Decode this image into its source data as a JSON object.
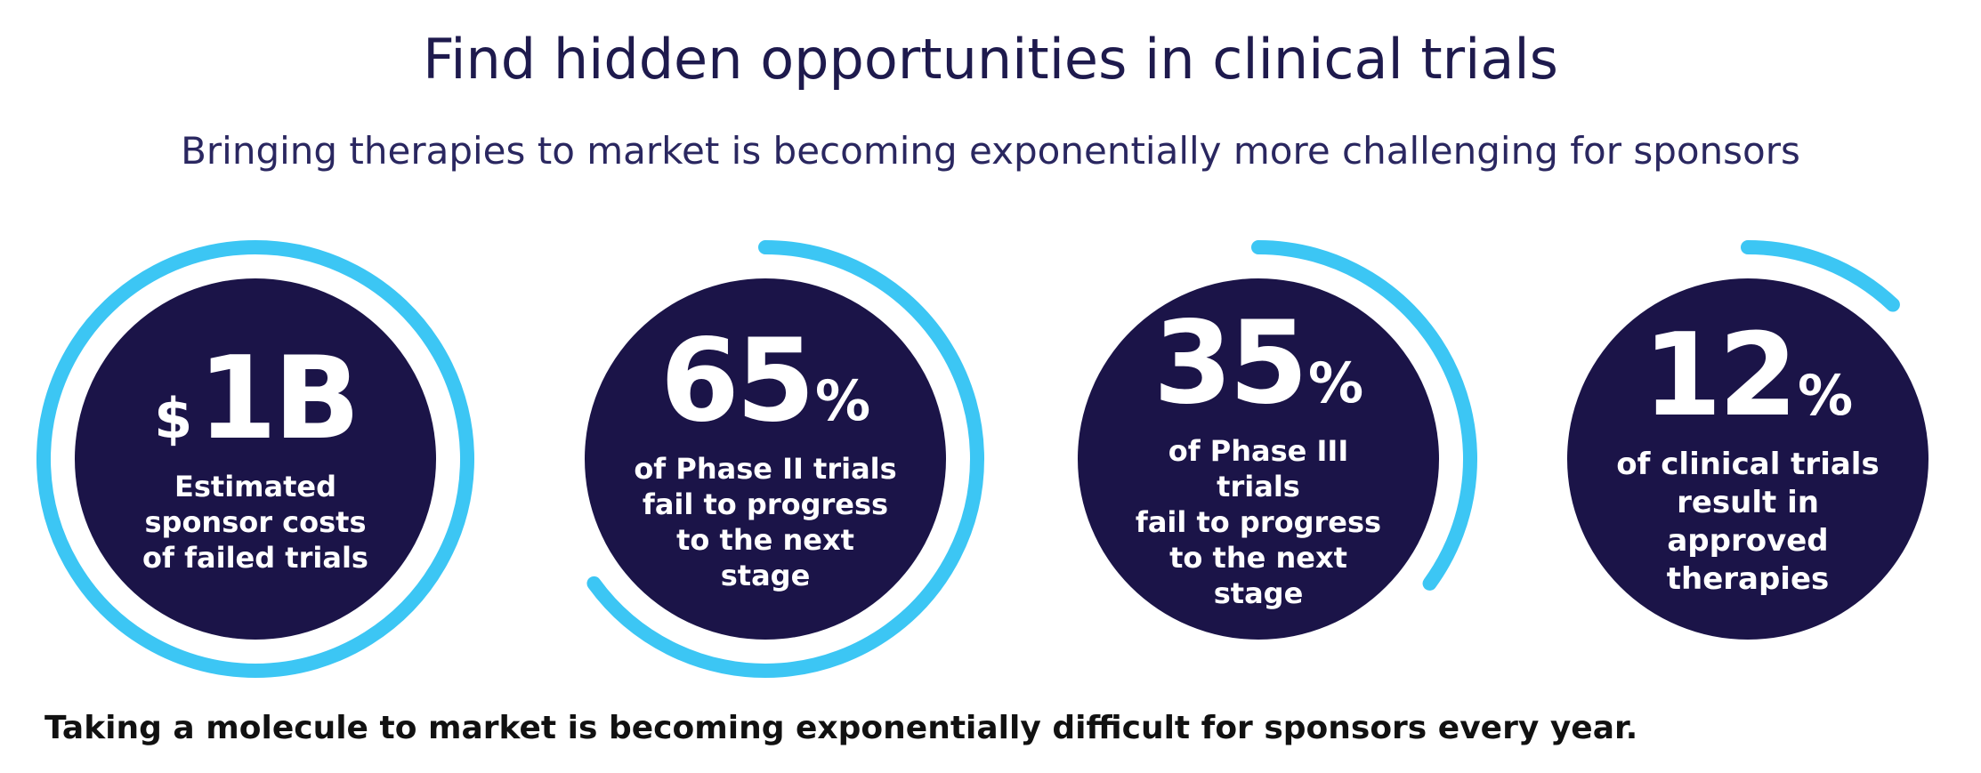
{
  "header": {
    "title": "Find hidden opportunities in clinical trials",
    "subtitle": "Bringing therapies to market is becoming exponentially more challenging for sponsors"
  },
  "colors": {
    "circle_fill": "#1b1448",
    "ring": "#3cc6f4",
    "title": "#1e1a4d",
    "footer": "#111111"
  },
  "stats": [
    {
      "prefix": "$",
      "value": "1B",
      "suffix": "",
      "line1": "Estimated",
      "line2": "sponsor costs",
      "line3": "of failed trials",
      "line4": "",
      "ring_fraction": 1.0
    },
    {
      "prefix": "",
      "value": "65",
      "suffix": "%",
      "line1": "of Phase II trials",
      "line2": "fail to progress",
      "line3": "to the next",
      "line4": "stage",
      "ring_fraction": 0.65
    },
    {
      "prefix": "",
      "value": "35",
      "suffix": "%",
      "line1": "of Phase III trials",
      "line2": "fail to progress",
      "line3": "to the next",
      "line4": "stage",
      "ring_fraction": 0.35
    },
    {
      "prefix": "",
      "value": "12",
      "suffix": "%",
      "line1": "of clinical trials",
      "line2": "result in approved",
      "line3": "therapies",
      "line4": "",
      "ring_fraction": 0.12
    }
  ],
  "footer": {
    "text": "Taking a molecule to market is becoming exponentially difficult for sponsors every year."
  }
}
